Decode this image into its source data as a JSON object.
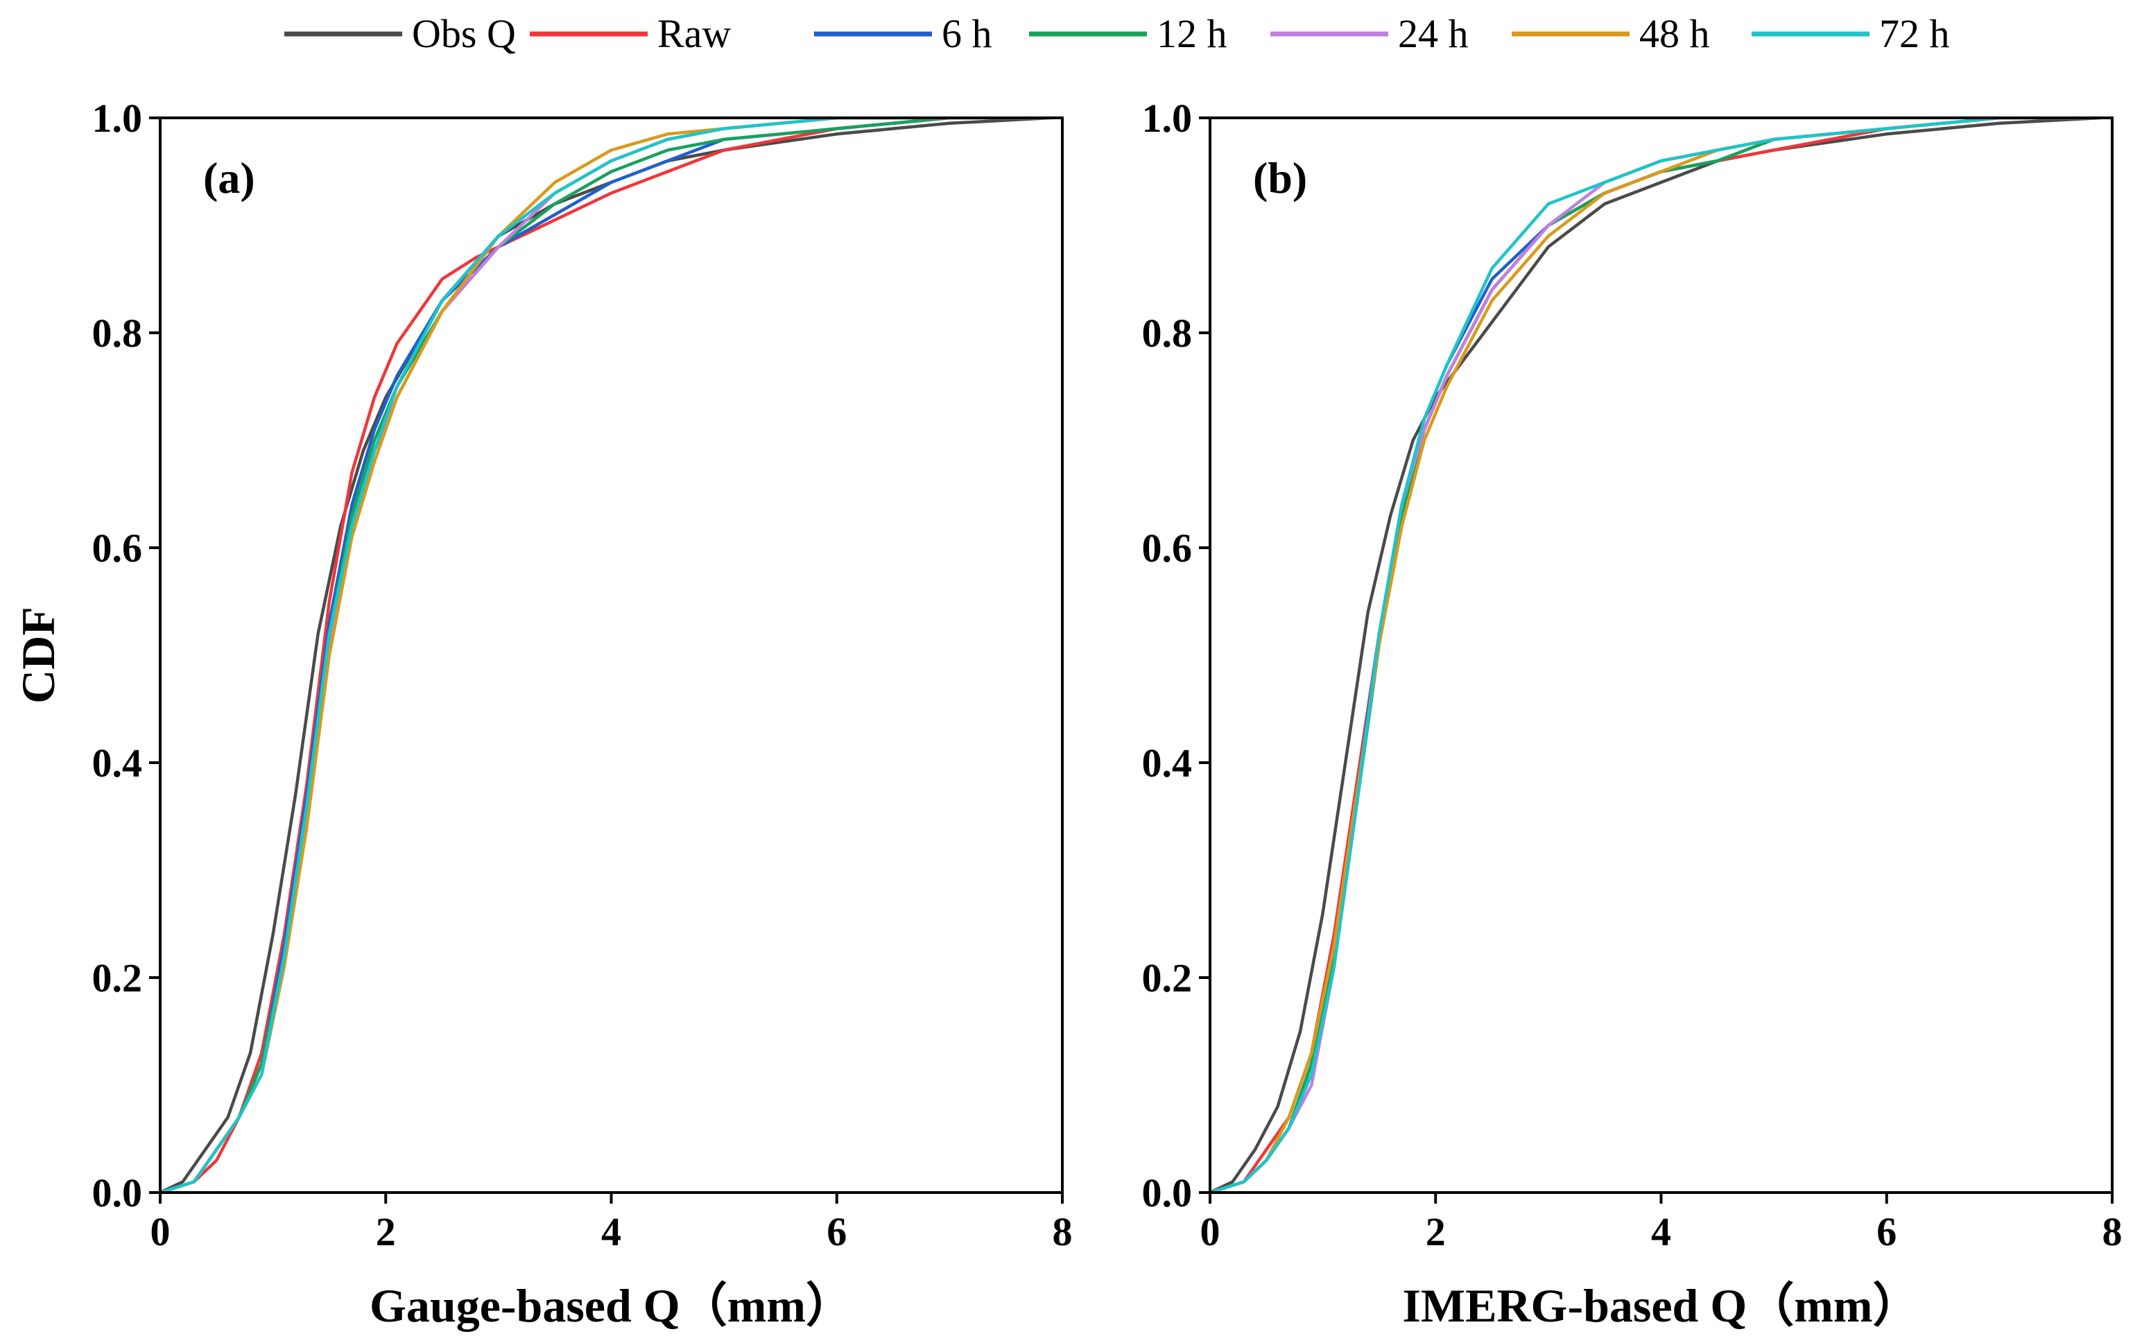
{
  "legend": [
    {
      "name": "Obs Q",
      "color": "#4a4a4a"
    },
    {
      "name": "Raw",
      "color": "#f0363b"
    },
    {
      "name": "6 h",
      "color": "#1f5fd1"
    },
    {
      "name": "12 h",
      "color": "#17a25c"
    },
    {
      "name": "24 h",
      "color": "#c17fe0"
    },
    {
      "name": "48 h",
      "color": "#d99a1a"
    },
    {
      "name": "72 h",
      "color": "#1ec4c9"
    }
  ],
  "chart_data": [
    {
      "type": "line",
      "panel_label": "(a)",
      "xlabel": "Gauge-based Q（mm）",
      "ylabel": "CDF",
      "xlim": [
        0,
        8
      ],
      "ylim": [
        0,
        1
      ],
      "xticks": [
        0,
        2,
        4,
        6,
        8
      ],
      "yticks": [
        0.0,
        0.2,
        0.4,
        0.6,
        0.8,
        1.0
      ],
      "xtick_labels": [
        "0",
        "2",
        "4",
        "6",
        "8"
      ],
      "ytick_labels": [
        "0.0",
        "0.2",
        "0.4",
        "0.6",
        "0.8",
        "1.0"
      ],
      "series": [
        {
          "name": "Obs Q",
          "color": "#4a4a4a",
          "x": [
            0,
            0.2,
            0.4,
            0.6,
            0.8,
            1.0,
            1.2,
            1.4,
            1.6,
            1.8,
            2.0,
            2.5,
            3.0,
            3.5,
            4.0,
            4.5,
            5.0,
            6.0,
            7.0,
            7.9
          ],
          "y": [
            0,
            0.01,
            0.04,
            0.07,
            0.13,
            0.24,
            0.37,
            0.52,
            0.62,
            0.69,
            0.74,
            0.83,
            0.89,
            0.92,
            0.94,
            0.96,
            0.97,
            0.985,
            0.995,
            1.0
          ]
        },
        {
          "name": "Raw",
          "color": "#f0363b",
          "x": [
            0,
            0.3,
            0.5,
            0.7,
            0.9,
            1.1,
            1.3,
            1.5,
            1.7,
            1.9,
            2.1,
            2.5,
            2.8,
            3.2,
            3.6,
            4.0,
            4.5,
            5.0,
            6.0,
            7.0,
            7.9
          ],
          "y": [
            0,
            0.01,
            0.03,
            0.07,
            0.13,
            0.24,
            0.38,
            0.55,
            0.67,
            0.74,
            0.79,
            0.85,
            0.87,
            0.89,
            0.91,
            0.93,
            0.95,
            0.97,
            0.99,
            1.0,
            1.0
          ]
        },
        {
          "name": "6 h",
          "color": "#1f5fd1",
          "x": [
            0,
            0.3,
            0.5,
            0.7,
            0.9,
            1.1,
            1.3,
            1.5,
            1.7,
            1.9,
            2.1,
            2.5,
            3.0,
            3.5,
            4.0,
            4.5,
            5.0,
            6.0,
            7.0,
            7.9
          ],
          "y": [
            0,
            0.01,
            0.04,
            0.07,
            0.12,
            0.23,
            0.37,
            0.53,
            0.64,
            0.71,
            0.76,
            0.83,
            0.88,
            0.91,
            0.94,
            0.96,
            0.98,
            0.99,
            1.0,
            1.0
          ]
        },
        {
          "name": "12 h",
          "color": "#17a25c",
          "x": [
            0,
            0.3,
            0.5,
            0.7,
            0.9,
            1.1,
            1.3,
            1.5,
            1.7,
            1.9,
            2.1,
            2.5,
            3.0,
            3.5,
            4.0,
            4.5,
            5.0,
            6.0,
            7.0,
            7.9
          ],
          "y": [
            0,
            0.01,
            0.04,
            0.07,
            0.12,
            0.22,
            0.36,
            0.52,
            0.63,
            0.7,
            0.75,
            0.82,
            0.88,
            0.92,
            0.95,
            0.97,
            0.98,
            0.99,
            1.0,
            1.0
          ]
        },
        {
          "name": "24 h",
          "color": "#c17fe0",
          "x": [
            0,
            0.3,
            0.5,
            0.7,
            0.9,
            1.1,
            1.3,
            1.5,
            1.7,
            1.9,
            2.1,
            2.5,
            3.0,
            3.5,
            4.0,
            4.5,
            5.0,
            6.0,
            7.0,
            7.9
          ],
          "y": [
            0,
            0.01,
            0.04,
            0.07,
            0.11,
            0.22,
            0.35,
            0.51,
            0.62,
            0.69,
            0.74,
            0.82,
            0.88,
            0.93,
            0.96,
            0.98,
            0.99,
            1.0,
            1.0,
            1.0
          ]
        },
        {
          "name": "48 h",
          "color": "#d99a1a",
          "x": [
            0,
            0.3,
            0.5,
            0.7,
            0.9,
            1.1,
            1.3,
            1.5,
            1.7,
            1.9,
            2.1,
            2.5,
            3.0,
            3.5,
            4.0,
            4.5,
            5.0,
            6.0,
            7.0,
            7.9
          ],
          "y": [
            0,
            0.01,
            0.04,
            0.07,
            0.11,
            0.21,
            0.34,
            0.5,
            0.61,
            0.68,
            0.74,
            0.82,
            0.89,
            0.94,
            0.97,
            0.985,
            0.99,
            1.0,
            1.0,
            1.0
          ]
        },
        {
          "name": "72 h",
          "color": "#1ec4c9",
          "x": [
            0,
            0.3,
            0.5,
            0.7,
            0.9,
            1.1,
            1.3,
            1.5,
            1.7,
            1.9,
            2.1,
            2.5,
            3.0,
            3.5,
            4.0,
            4.5,
            5.0,
            6.0,
            7.0,
            7.9
          ],
          "y": [
            0,
            0.01,
            0.04,
            0.07,
            0.11,
            0.22,
            0.36,
            0.52,
            0.62,
            0.69,
            0.75,
            0.83,
            0.89,
            0.93,
            0.96,
            0.98,
            0.99,
            1.0,
            1.0,
            1.0
          ]
        }
      ]
    },
    {
      "type": "line",
      "panel_label": "(b)",
      "xlabel": "IMERG-based Q（mm）",
      "ylabel": "",
      "xlim": [
        0,
        8
      ],
      "ylim": [
        0,
        1
      ],
      "xticks": [
        0,
        2,
        4,
        6,
        8
      ],
      "yticks": [
        0.0,
        0.2,
        0.4,
        0.6,
        0.8,
        1.0
      ],
      "xtick_labels": [
        "0",
        "2",
        "4",
        "6",
        "8"
      ],
      "ytick_labels": [
        "0.0",
        "0.2",
        "0.4",
        "0.6",
        "0.8",
        "1.0"
      ],
      "series": [
        {
          "name": "Obs Q",
          "color": "#4a4a4a",
          "x": [
            0,
            0.2,
            0.4,
            0.6,
            0.8,
            1.0,
            1.2,
            1.4,
            1.6,
            1.8,
            2.0,
            2.5,
            3.0,
            3.5,
            4.0,
            4.5,
            5.0,
            6.0,
            7.0,
            7.9
          ],
          "y": [
            0,
            0.01,
            0.04,
            0.08,
            0.15,
            0.26,
            0.4,
            0.54,
            0.63,
            0.7,
            0.74,
            0.81,
            0.88,
            0.92,
            0.94,
            0.96,
            0.97,
            0.985,
            0.995,
            1.0
          ]
        },
        {
          "name": "Raw",
          "color": "#f0363b",
          "x": [
            0,
            0.3,
            0.5,
            0.7,
            0.9,
            1.1,
            1.3,
            1.5,
            1.7,
            1.9,
            2.1,
            2.5,
            3.0,
            3.5,
            4.0,
            4.5,
            5.0,
            6.0,
            7.0,
            7.9
          ],
          "y": [
            0,
            0.01,
            0.04,
            0.07,
            0.13,
            0.24,
            0.38,
            0.52,
            0.63,
            0.71,
            0.76,
            0.84,
            0.9,
            0.93,
            0.95,
            0.96,
            0.97,
            0.99,
            1.0,
            1.0
          ]
        },
        {
          "name": "6 h",
          "color": "#1f5fd1",
          "x": [
            0,
            0.3,
            0.5,
            0.7,
            0.9,
            1.1,
            1.3,
            1.5,
            1.7,
            1.9,
            2.1,
            2.5,
            3.0,
            3.5,
            4.0,
            4.5,
            5.0,
            6.0,
            7.0,
            7.9
          ],
          "y": [
            0,
            0.01,
            0.03,
            0.06,
            0.12,
            0.22,
            0.37,
            0.52,
            0.64,
            0.72,
            0.77,
            0.85,
            0.9,
            0.93,
            0.95,
            0.96,
            0.98,
            0.99,
            1.0,
            1.0
          ]
        },
        {
          "name": "12 h",
          "color": "#17a25c",
          "x": [
            0,
            0.3,
            0.5,
            0.7,
            0.9,
            1.1,
            1.3,
            1.5,
            1.7,
            1.9,
            2.1,
            2.5,
            3.0,
            3.5,
            4.0,
            4.5,
            5.0,
            6.0,
            7.0,
            7.9
          ],
          "y": [
            0,
            0.01,
            0.03,
            0.06,
            0.12,
            0.22,
            0.36,
            0.51,
            0.63,
            0.71,
            0.76,
            0.84,
            0.9,
            0.93,
            0.95,
            0.96,
            0.98,
            0.99,
            1.0,
            1.0
          ]
        },
        {
          "name": "24 h",
          "color": "#c17fe0",
          "x": [
            0,
            0.3,
            0.5,
            0.7,
            0.9,
            1.1,
            1.3,
            1.5,
            1.7,
            1.9,
            2.1,
            2.5,
            3.0,
            3.5,
            4.0,
            4.5,
            5.0,
            6.0,
            7.0,
            7.9
          ],
          "y": [
            0,
            0.01,
            0.03,
            0.06,
            0.1,
            0.21,
            0.36,
            0.52,
            0.64,
            0.71,
            0.76,
            0.84,
            0.9,
            0.94,
            0.96,
            0.97,
            0.98,
            0.99,
            1.0,
            1.0
          ]
        },
        {
          "name": "48 h",
          "color": "#d99a1a",
          "x": [
            0,
            0.3,
            0.5,
            0.7,
            0.9,
            1.1,
            1.3,
            1.5,
            1.7,
            1.9,
            2.1,
            2.5,
            3.0,
            3.5,
            4.0,
            4.5,
            5.0,
            6.0,
            7.0,
            7.9
          ],
          "y": [
            0,
            0.01,
            0.03,
            0.07,
            0.13,
            0.23,
            0.37,
            0.51,
            0.62,
            0.7,
            0.75,
            0.83,
            0.89,
            0.93,
            0.95,
            0.97,
            0.98,
            0.99,
            1.0,
            1.0
          ]
        },
        {
          "name": "72 h",
          "color": "#1ec4c9",
          "x": [
            0,
            0.3,
            0.5,
            0.7,
            0.9,
            1.1,
            1.3,
            1.5,
            1.7,
            1.9,
            2.1,
            2.5,
            3.0,
            3.5,
            4.0,
            4.5,
            5.0,
            6.0,
            7.0,
            7.9
          ],
          "y": [
            0,
            0.01,
            0.03,
            0.06,
            0.11,
            0.21,
            0.36,
            0.52,
            0.64,
            0.72,
            0.77,
            0.86,
            0.92,
            0.94,
            0.96,
            0.97,
            0.98,
            0.99,
            1.0,
            1.0
          ]
        }
      ]
    }
  ]
}
